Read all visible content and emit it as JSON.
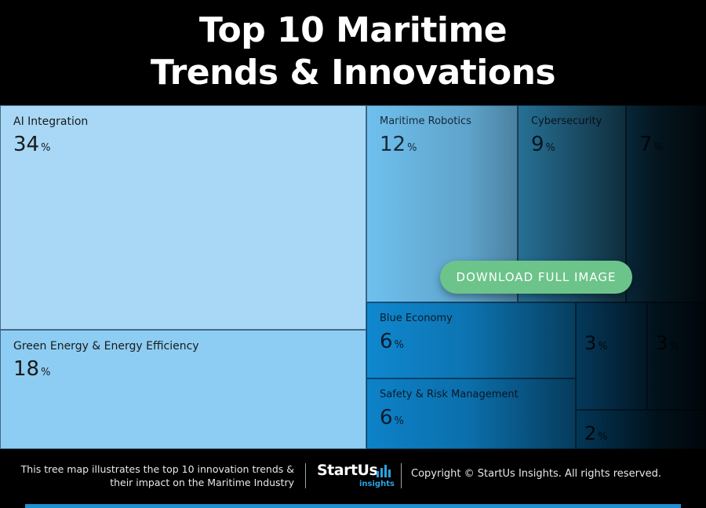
{
  "title": {
    "line1": "Top 10 Maritime",
    "line2": "Trends & Innovations"
  },
  "chart_data": {
    "type": "treemap",
    "title": "Top 10 Maritime Trends & Innovations",
    "unit": "%",
    "items": [
      {
        "label": "AI Integration",
        "value": 34
      },
      {
        "label": "Green Energy & Energy Efficiency",
        "value": 18
      },
      {
        "label": "Maritime Robotics",
        "value": 12
      },
      {
        "label": "Cybersecurity",
        "value": 9
      },
      {
        "label": "",
        "value": 7
      },
      {
        "label": "Blue Economy",
        "value": 6
      },
      {
        "label": "Safety & Risk Management",
        "value": 6
      },
      {
        "label": "",
        "value": 3
      },
      {
        "label": "",
        "value": 3
      },
      {
        "label": "",
        "value": 2
      }
    ]
  },
  "download_button": "DOWNLOAD FULL IMAGE",
  "footer": {
    "description_line1": "This tree map illustrates the top 10 innovation trends &",
    "description_line2": "their impact on the Maritime Industry",
    "logo_text": "StartUs",
    "logo_subtext": "insights",
    "copyright": "Copyright © StartUs Insights. All rights reserved."
  },
  "colors": {
    "cell_light": "#a8d8f5",
    "cell_mid": "#3aa9e0",
    "cell_dark": "#0a7fc9",
    "accent": "#1f8fd0",
    "button": "#6cc48a"
  }
}
